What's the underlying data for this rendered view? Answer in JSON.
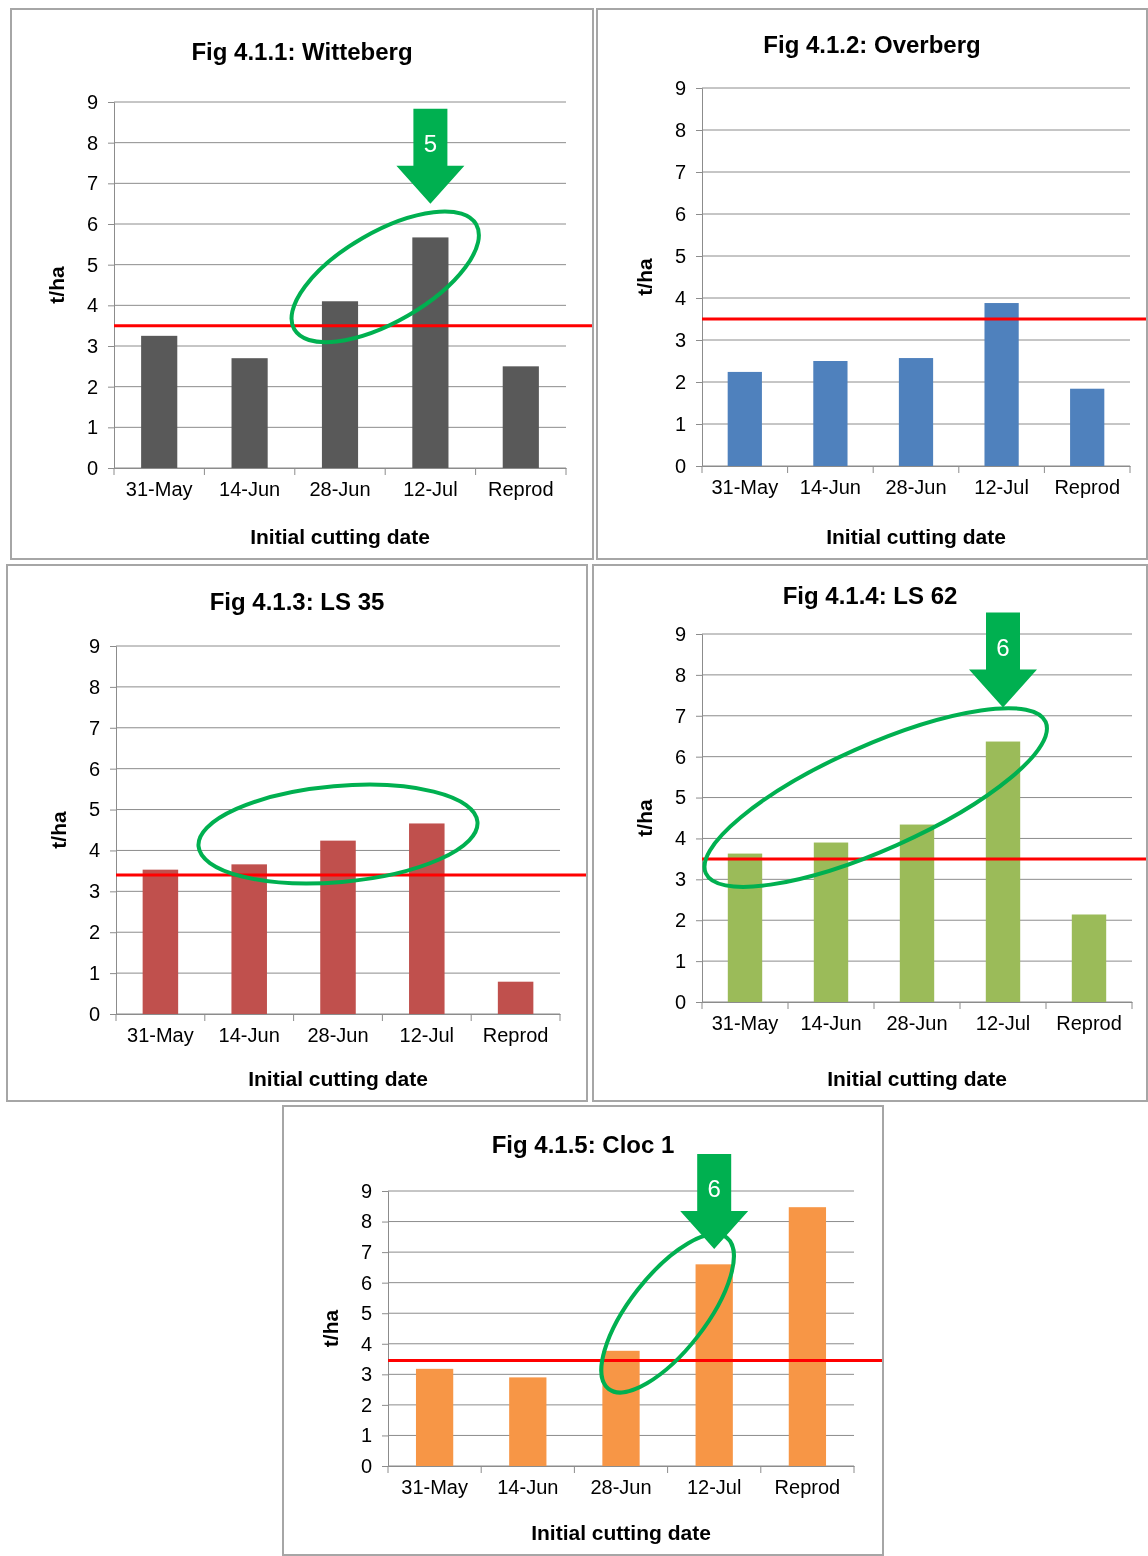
{
  "chart_data": [
    {
      "type": "bar",
      "title": "Fig 4.1.1: Witteberg",
      "xlabel": "Initial cutting date",
      "ylabel": "t/ha",
      "categories": [
        "31-May",
        "14-Jun",
        "28-Jun",
        "12-Jul",
        "Reprod"
      ],
      "series": [
        {
          "color": "#595959",
          "values": [
            3.25,
            2.7,
            4.1,
            5.67,
            2.5
          ]
        }
      ],
      "ylim": [
        0,
        9
      ],
      "yticks": [
        0,
        1,
        2,
        3,
        4,
        5,
        6,
        7,
        8,
        9
      ],
      "grid": "y",
      "ref_lines": [
        {
          "axis": "y",
          "value": 3.5,
          "color": "#ff0000"
        }
      ],
      "annotations": [
        "5"
      ]
    },
    {
      "type": "bar",
      "title": "Fig 4.1.2: Overberg",
      "xlabel": "Initial cutting date",
      "ylabel": "t/ha",
      "categories": [
        "31-May",
        "14-Jun",
        "28-Jun",
        "12-Jul",
        "Reprod"
      ],
      "series": [
        {
          "color": "#4f81bd",
          "values": [
            2.24,
            2.5,
            2.57,
            3.88,
            1.84
          ]
        }
      ],
      "ylim": [
        0,
        9
      ],
      "yticks": [
        0,
        1,
        2,
        3,
        4,
        5,
        6,
        7,
        8,
        9
      ],
      "grid": "y",
      "ref_lines": [
        {
          "axis": "y",
          "value": 3.5,
          "color": "#ff0000"
        }
      ]
    },
    {
      "type": "bar",
      "title": "Fig 4.1.3: LS 35",
      "xlabel": "Initial cutting date",
      "ylabel": "t/ha",
      "categories": [
        "31-May",
        "14-Jun",
        "28-Jun",
        "12-Jul",
        "Reprod"
      ],
      "series": [
        {
          "color": "#c0504d",
          "values": [
            3.53,
            3.66,
            4.24,
            4.66,
            0.79
          ]
        }
      ],
      "ylim": [
        0,
        9
      ],
      "yticks": [
        0,
        1,
        2,
        3,
        4,
        5,
        6,
        7,
        8,
        9
      ],
      "grid": "y",
      "ref_lines": [
        {
          "axis": "y",
          "value": 3.4,
          "color": "#ff0000"
        }
      ]
    },
    {
      "type": "bar",
      "title": "Fig 4.1.4: LS 62",
      "xlabel": "Initial cutting date",
      "ylabel": "t/ha",
      "categories": [
        "31-May",
        "14-Jun",
        "28-Jun",
        "12-Jul",
        "Reprod"
      ],
      "series": [
        {
          "color": "#9bbb59",
          "values": [
            3.63,
            3.9,
            4.34,
            6.37,
            2.14
          ]
        }
      ],
      "ylim": [
        0,
        9
      ],
      "yticks": [
        0,
        1,
        2,
        3,
        4,
        5,
        6,
        7,
        8,
        9
      ],
      "grid": "y",
      "ref_lines": [
        {
          "axis": "y",
          "value": 3.5,
          "color": "#ff0000"
        }
      ],
      "annotations": [
        "6"
      ]
    },
    {
      "type": "bar",
      "title": "Fig 4.1.5: Cloc 1",
      "xlabel": "Initial cutting date",
      "ylabel": "t/ha",
      "categories": [
        "31-May",
        "14-Jun",
        "28-Jun",
        "12-Jul",
        "Reprod"
      ],
      "series": [
        {
          "color": "#f79646",
          "values": [
            3.18,
            2.9,
            3.77,
            6.6,
            8.47
          ]
        }
      ],
      "ylim": [
        0,
        9
      ],
      "yticks": [
        0,
        1,
        2,
        3,
        4,
        5,
        6,
        7,
        8,
        9
      ],
      "grid": "y",
      "ref_lines": [
        {
          "axis": "y",
          "value": 3.45,
          "color": "#ff0000"
        }
      ],
      "annotations": [
        "6"
      ]
    }
  ]
}
